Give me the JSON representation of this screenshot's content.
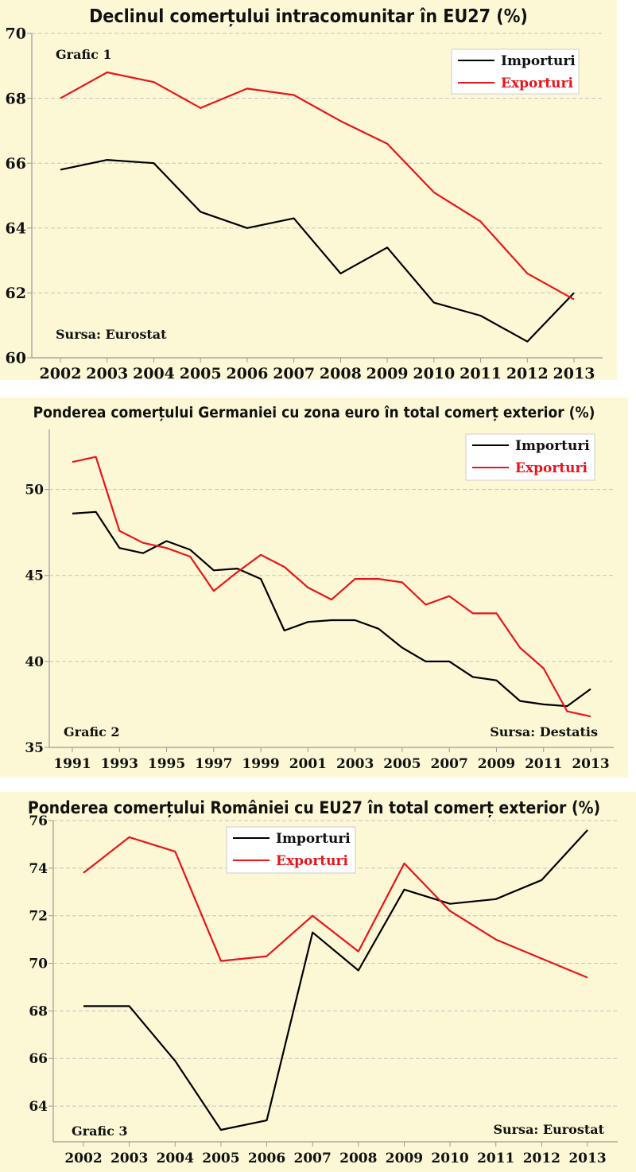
{
  "chart_data": [
    {
      "type": "line",
      "title": "Declinul comerțului intracomunitar în EU27 (%)",
      "label": "Grafic 1",
      "source": "Sursa: Eurostat",
      "legend_position": "top-right",
      "x": [
        2002,
        2003,
        2004,
        2005,
        2006,
        2007,
        2008,
        2009,
        2010,
        2011,
        2012,
        2013
      ],
      "x_ticks": [
        "2002",
        "2003",
        "2004",
        "2005",
        "2006",
        "2007",
        "2008",
        "2009",
        "2010",
        "2011",
        "2012",
        "2013"
      ],
      "y_ticks": [
        "60",
        "62",
        "64",
        "66",
        "68",
        "70"
      ],
      "ylim": [
        60,
        70
      ],
      "series": [
        {
          "name": "Importuri",
          "color": "#000000",
          "values": [
            65.8,
            66.1,
            66.0,
            64.5,
            64.0,
            64.3,
            62.6,
            63.4,
            61.7,
            61.3,
            60.5,
            62.0
          ]
        },
        {
          "name": "Exporturi",
          "color": "#e8141b",
          "values": [
            68.0,
            68.8,
            68.5,
            67.7,
            68.3,
            68.1,
            67.3,
            66.6,
            65.1,
            64.2,
            62.6,
            61.8
          ]
        }
      ]
    },
    {
      "type": "line",
      "title": "Ponderea comerțului Germaniei cu zona euro în total comerț exterior (%)",
      "label": "Grafic 2",
      "source": "Sursa: Destatis",
      "legend_position": "top-right",
      "x": [
        1991,
        1992,
        1993,
        1994,
        1995,
        1996,
        1997,
        1998,
        1999,
        2000,
        2001,
        2002,
        2003,
        2004,
        2005,
        2006,
        2007,
        2008,
        2009,
        2010,
        2011,
        2012,
        2013
      ],
      "x_ticks": [
        "1991",
        "1993",
        "1995",
        "1997",
        "1999",
        "2001",
        "2003",
        "2005",
        "2007",
        "2009",
        "2011",
        "2013"
      ],
      "y_ticks": [
        "35",
        "40",
        "45",
        "50"
      ],
      "ylim": [
        35,
        53.5
      ],
      "series": [
        {
          "name": "Importuri",
          "color": "#000000",
          "values": [
            48.6,
            48.7,
            46.6,
            46.3,
            47.0,
            46.5,
            45.3,
            45.4,
            44.8,
            41.8,
            42.3,
            42.4,
            42.4,
            41.9,
            40.8,
            40.0,
            40.0,
            39.1,
            38.9,
            37.7,
            37.5,
            37.4,
            38.4
          ]
        },
        {
          "name": "Exporturi",
          "color": "#e8141b",
          "values": [
            51.6,
            51.9,
            47.6,
            46.9,
            46.6,
            46.1,
            44.1,
            45.2,
            46.2,
            45.5,
            44.3,
            43.6,
            44.8,
            44.8,
            44.6,
            43.3,
            43.8,
            42.8,
            42.8,
            40.8,
            39.6,
            37.1,
            36.8
          ]
        }
      ]
    },
    {
      "type": "line",
      "title": "Ponderea comerțului României cu EU27 în total comerț exterior (%)",
      "label": "Grafic 3",
      "source": "Sursa: Eurostat",
      "legend_position": "top-left",
      "x": [
        2002,
        2003,
        2004,
        2005,
        2006,
        2007,
        2008,
        2009,
        2010,
        2011,
        2012,
        2013
      ],
      "x_ticks": [
        "2002",
        "2003",
        "2004",
        "2005",
        "2006",
        "2007",
        "2008",
        "2009",
        "2010",
        "2011",
        "2012",
        "2013"
      ],
      "y_ticks": [
        "64",
        "66",
        "68",
        "70",
        "72",
        "74",
        "76"
      ],
      "ylim": [
        62.5,
        76
      ],
      "series": [
        {
          "name": "Importuri",
          "color": "#000000",
          "values": [
            68.2,
            68.2,
            65.9,
            63.0,
            63.4,
            71.3,
            69.7,
            73.1,
            72.5,
            72.7,
            73.5,
            75.6
          ]
        },
        {
          "name": "Exporturi",
          "color": "#e8141b",
          "values": [
            73.8,
            75.3,
            74.7,
            70.1,
            70.3,
            72.0,
            70.5,
            74.2,
            72.2,
            71.0,
            70.2,
            69.4
          ]
        }
      ]
    }
  ]
}
